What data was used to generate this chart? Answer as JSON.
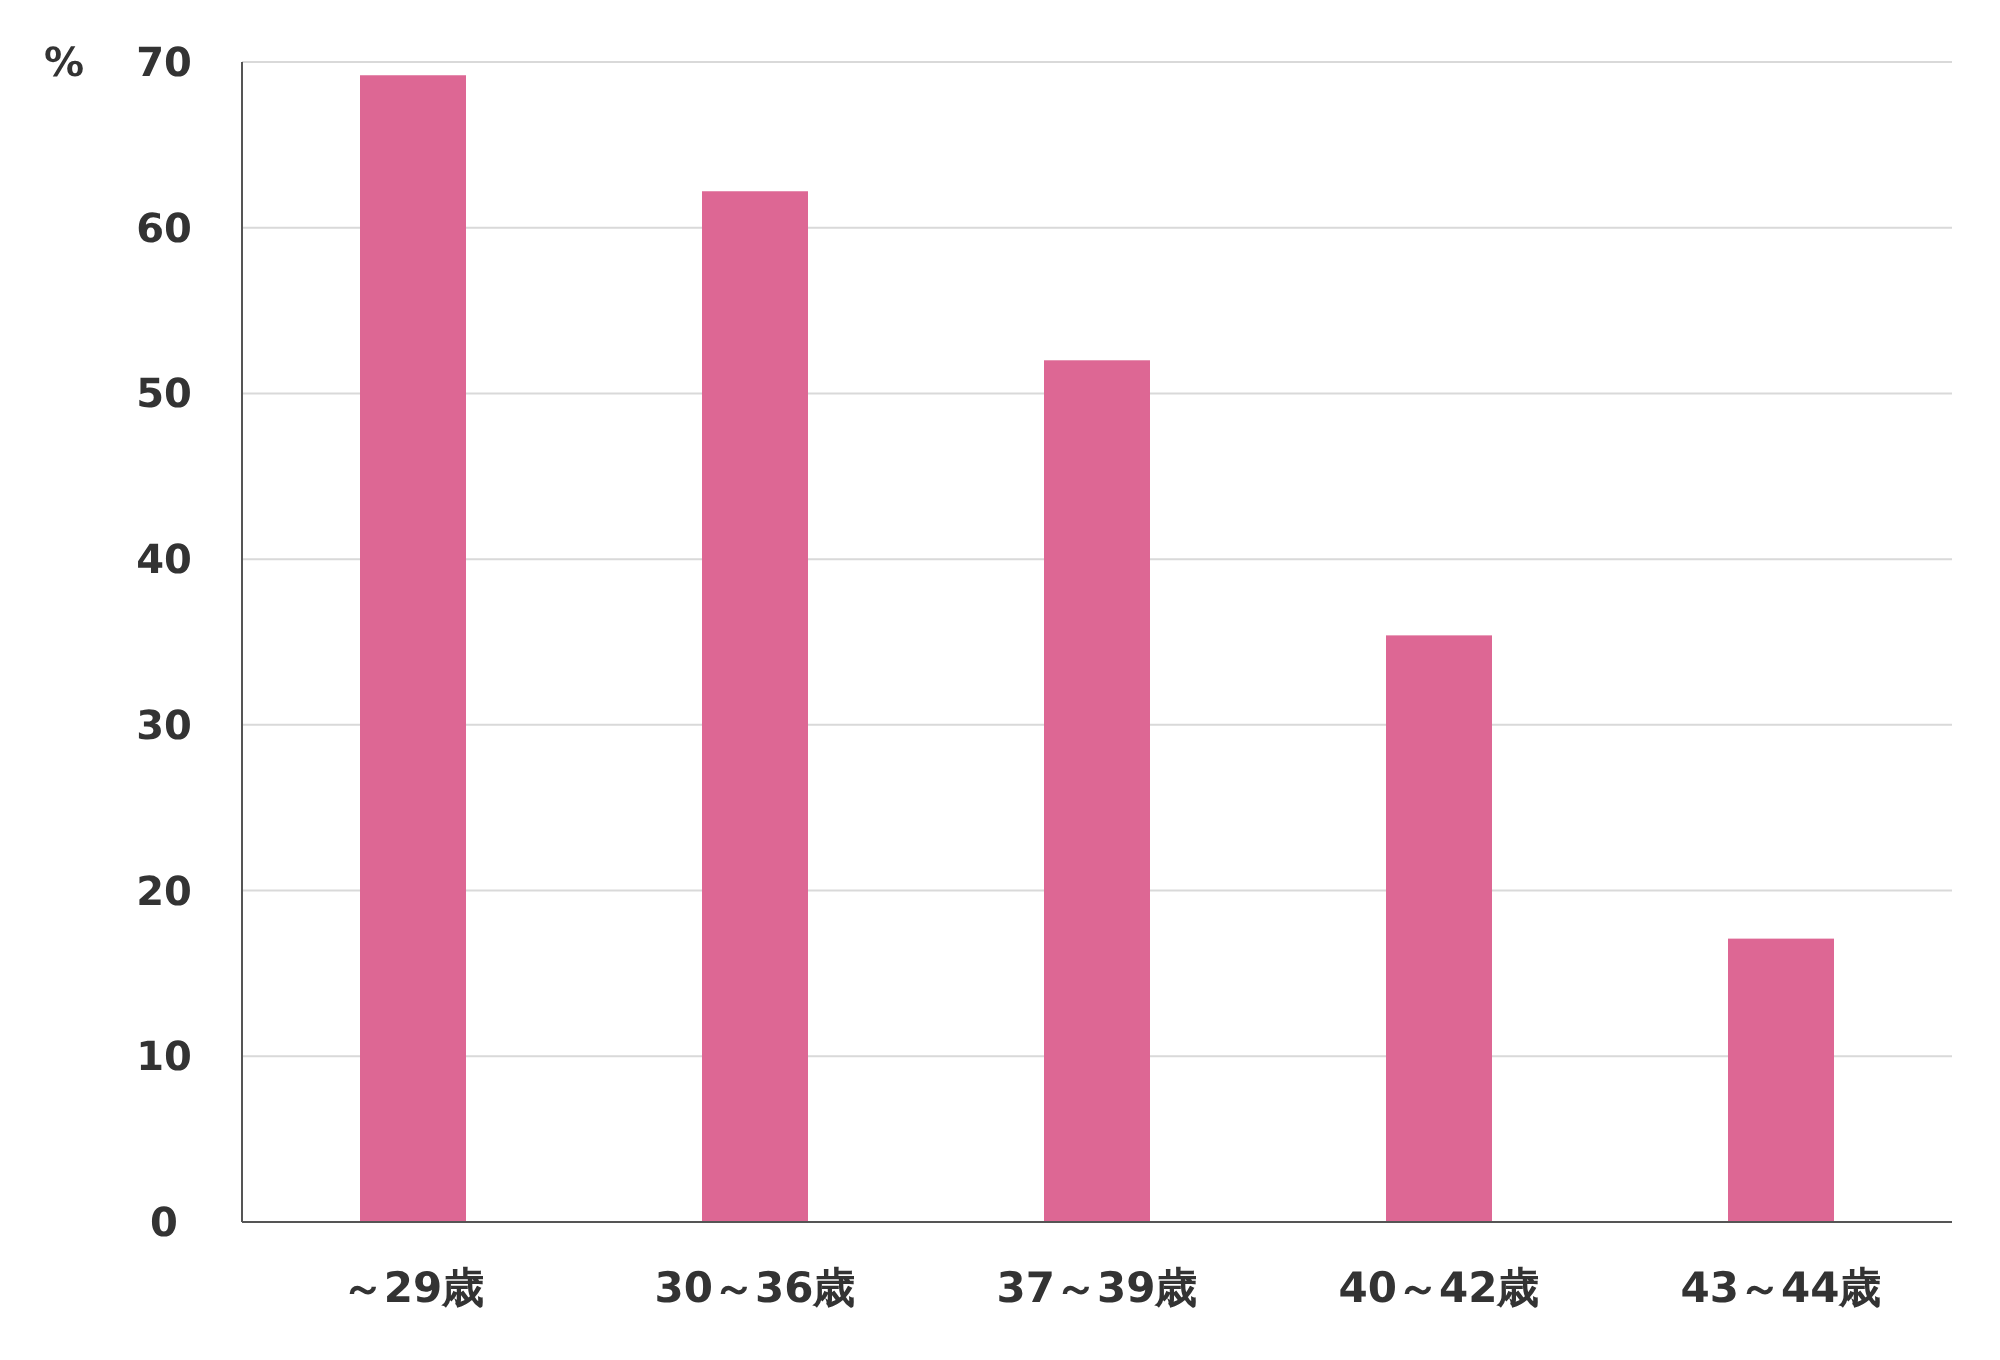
{
  "chart_data": {
    "type": "bar",
    "ylabel": "%",
    "categories": [
      "～29歳",
      "30～36歳",
      "37～39歳",
      "40～42歳",
      "43～44歳"
    ],
    "values": [
      69.2,
      62.2,
      52,
      35.4,
      17.1
    ],
    "color": "#dd6794",
    "ylim": [
      0,
      70
    ],
    "yticks": [
      0,
      10,
      20,
      30,
      40,
      50,
      60,
      70
    ],
    "grid": "y"
  }
}
